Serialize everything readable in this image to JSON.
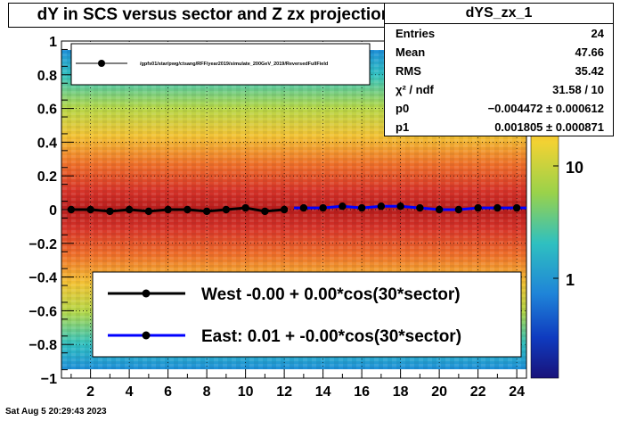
{
  "title": "dY in SCS versus sector and Z zx projection",
  "stats": {
    "name": "dYS_zx_1",
    "rows": [
      {
        "key": "Entries",
        "value": "24"
      },
      {
        "key": "Mean",
        "value": "47.66"
      },
      {
        "key": "RMS",
        "value": "35.42"
      },
      {
        "key": "χ² / ndf",
        "value": "31.58 / 10"
      },
      {
        "key": "p0",
        "value": "−0.004472 ± 0.000612"
      },
      {
        "key": "p1",
        "value": "0.001805 ± 0.000871"
      }
    ]
  },
  "timestamp": "Sat Aug  5 20:29:43 2023",
  "colors": {
    "west": "#000000",
    "east": "#0000ff"
  },
  "chart_data": {
    "type": "scatter",
    "xlim": [
      0.5,
      24.5
    ],
    "ylim": [
      -1,
      1
    ],
    "x_ticks": [
      2,
      4,
      6,
      8,
      10,
      12,
      14,
      16,
      18,
      20,
      22,
      24
    ],
    "y_ticks": [
      "1",
      "0.8",
      "0.6",
      "0.4",
      "0.2",
      "0",
      "−0.2",
      "−0.4",
      "−0.6",
      "−0.8",
      "−1"
    ],
    "grid": true,
    "colorbar_ticks": [
      "10",
      "1"
    ],
    "top_legend": "/gpfs01/star/pwg/ctsang/RFF/year2019/simulate_200GeV_2019/ReversedFullField",
    "series": [
      {
        "name": "West -0.00 +  0.00*cos(30*sector)",
        "x": [
          1,
          2,
          3,
          4,
          5,
          6,
          7,
          8,
          9,
          10,
          11,
          12
        ],
        "y": [
          0.0,
          0.0,
          -0.01,
          0.0,
          -0.01,
          0.0,
          0.0,
          -0.01,
          0.0,
          0.01,
          -0.01,
          0.0
        ]
      },
      {
        "name": "East:  0.01 + -0.00*cos(30*sector)",
        "x": [
          13,
          14,
          15,
          16,
          17,
          18,
          19,
          20,
          21,
          22,
          23,
          24
        ],
        "y": [
          0.01,
          0.01,
          0.02,
          0.01,
          0.02,
          0.02,
          0.01,
          0.0,
          0.0,
          0.01,
          0.01,
          0.01
        ]
      }
    ]
  }
}
